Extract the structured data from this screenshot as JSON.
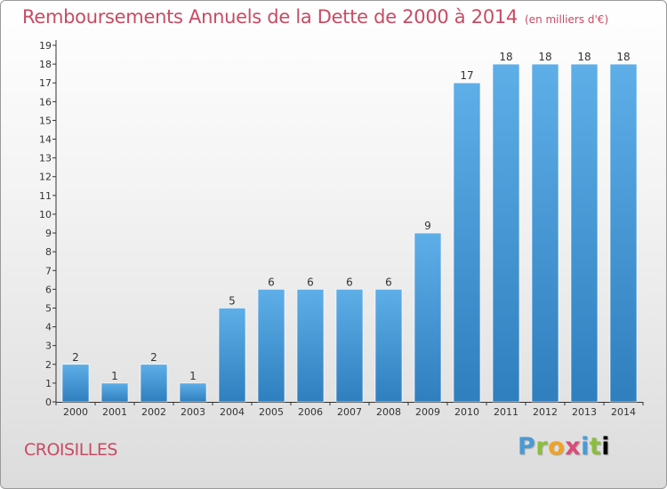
{
  "page": {
    "title": "Remboursements Annuels de la Dette de 2000 à 2014",
    "subtitle": "(en milliers d'€)",
    "commune": "CROISILLES",
    "brand": [
      "P",
      "r",
      "o",
      "x",
      "i",
      "t",
      "i"
    ]
  },
  "colors": {
    "accent": "#c84b63",
    "bar_top": "#5eaee8",
    "bar_bottom": "#2f7fbf",
    "axis": "#333333",
    "grid": "#dddddd"
  },
  "chart_data": {
    "type": "bar",
    "title": "Remboursements Annuels de la Dette de 2000 à 2014",
    "subtitle": "(en milliers d'€)",
    "xlabel": "",
    "ylabel": "",
    "categories": [
      "2000",
      "2001",
      "2002",
      "2003",
      "2004",
      "2005",
      "2006",
      "2007",
      "2008",
      "2009",
      "2010",
      "2011",
      "2012",
      "2013",
      "2014"
    ],
    "values": [
      2,
      1,
      2,
      1,
      5,
      6,
      6,
      6,
      6,
      9,
      17,
      18,
      18,
      18,
      18
    ],
    "value_labels": [
      "2",
      "1",
      "2",
      "1",
      "5",
      "6",
      "6",
      "6",
      "6",
      "9",
      "17",
      "18",
      "18",
      "18",
      "18"
    ],
    "ylim": [
      0,
      19
    ],
    "yticks": [
      0,
      1,
      2,
      3,
      4,
      5,
      6,
      7,
      8,
      9,
      10,
      11,
      12,
      13,
      14,
      15,
      16,
      17,
      18,
      19
    ],
    "grid": false,
    "legend": "none"
  }
}
